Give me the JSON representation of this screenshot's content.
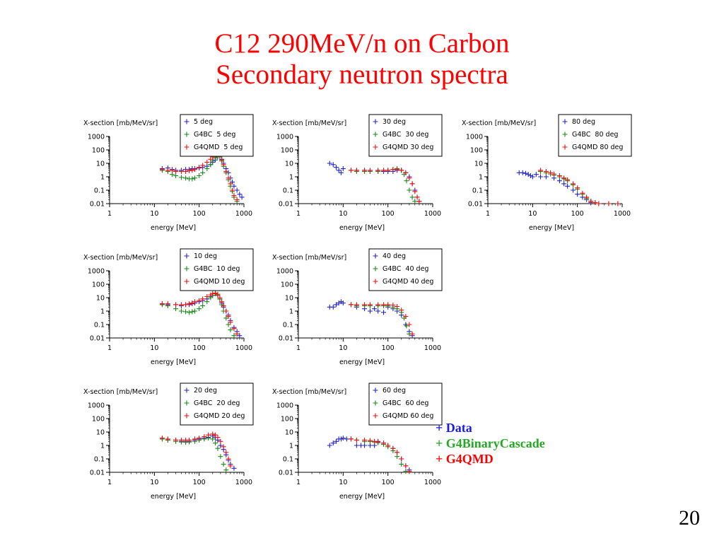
{
  "title_line1": "C12 290MeV/n on Carbon",
  "title_line2": "Secondary neutron spectra",
  "page_number": "20",
  "colors": {
    "data": "#2222cc",
    "g4bc": "#1a8a1a",
    "g4qmd": "#ee1111",
    "title": "#ff0000"
  },
  "big_legend": [
    {
      "marker": "+",
      "label": "Data",
      "color": "#1a1aee"
    },
    {
      "marker": "+",
      "label": "G4BinaryCascade",
      "color": "#22aa22"
    },
    {
      "marker": "+",
      "label": "G4QMD",
      "color": "#ff0000"
    }
  ],
  "chart_data": [
    {
      "type": "scatter",
      "angle": "5 deg",
      "ylabel": "X-section [mb/MeV/sr]",
      "xlabel": "energy [MeV]",
      "xscale": "log",
      "yscale": "log",
      "xlim": [
        1,
        1000
      ],
      "ylim": [
        0.01,
        1000
      ],
      "xticks": [
        "1",
        "10",
        "100",
        "1000"
      ],
      "yticks": [
        "1000",
        "100",
        "10",
        "1",
        "0.1",
        "0.01"
      ],
      "legend": [
        "5 deg",
        "G4BC  5 deg",
        "G4QMD  5 deg"
      ],
      "series": [
        {
          "name": "5 deg",
          "x": [
            15,
            20,
            25,
            30,
            40,
            50,
            60,
            70,
            80,
            100,
            120,
            150,
            180,
            200,
            230,
            260,
            290,
            320,
            350,
            400,
            450,
            500,
            550,
            600,
            700,
            800,
            900
          ],
          "y": [
            4,
            4.5,
            3.5,
            3,
            3,
            3.5,
            3.5,
            4,
            4,
            4.5,
            5,
            6,
            8,
            12,
            18,
            30,
            40,
            20,
            10,
            4,
            2,
            0.8,
            0.4,
            0.2,
            0.1,
            0.05,
            0.03
          ]
        },
        {
          "name": "G4BC  5 deg",
          "x": [
            15,
            20,
            25,
            30,
            40,
            50,
            60,
            70,
            80,
            100,
            120,
            150,
            180,
            200,
            230,
            260,
            290,
            320,
            350,
            400,
            450,
            500,
            550,
            600,
            700
          ],
          "y": [
            3,
            2.5,
            1.5,
            1.2,
            0.9,
            0.8,
            0.7,
            0.7,
            0.8,
            1.2,
            2,
            4,
            8,
            15,
            25,
            35,
            30,
            15,
            6,
            2,
            0.6,
            0.2,
            0.08,
            0.03,
            0.015
          ]
        },
        {
          "name": "G4QMD  5 deg",
          "x": [
            15,
            20,
            25,
            30,
            40,
            50,
            60,
            70,
            80,
            100,
            120,
            150,
            180,
            200,
            230,
            260,
            290,
            320,
            350,
            400,
            450,
            500,
            550,
            600,
            700
          ],
          "y": [
            3.5,
            3,
            3,
            2.5,
            2.5,
            2.5,
            2.8,
            3,
            3.5,
            5,
            7,
            12,
            20,
            30,
            40,
            45,
            35,
            18,
            8,
            2.5,
            0.8,
            0.3,
            0.1,
            0.04,
            0.02
          ]
        }
      ]
    },
    {
      "type": "scatter",
      "angle": "30 deg",
      "ylabel": "X-section [mb/MeV/sr]",
      "xlabel": "energy [MeV]",
      "xscale": "log",
      "yscale": "log",
      "xlim": [
        1,
        1000
      ],
      "ylim": [
        0.01,
        1000
      ],
      "xticks": [
        "1",
        "10",
        "100",
        "1000"
      ],
      "yticks": [
        "1000",
        "100",
        "10",
        "1",
        "0.1",
        "0.01"
      ],
      "legend": [
        "30 deg",
        "G4BC  30 deg",
        "G4QMD 30 deg"
      ],
      "series": [
        {
          "name": "30 deg",
          "x": [
            5,
            6,
            7,
            8,
            9,
            10,
            15,
            20,
            30,
            40,
            60,
            80,
            100,
            130,
            160,
            200,
            250,
            300,
            350,
            400,
            450,
            500
          ],
          "y": [
            10,
            8,
            5,
            3,
            2,
            4,
            3,
            3,
            3,
            2.5,
            2.5,
            2.5,
            2.5,
            2.5,
            3,
            3,
            2,
            1,
            0.3,
            0.1,
            0.03,
            0.015
          ]
        },
        {
          "name": "G4BC  30 deg",
          "x": [
            15,
            20,
            30,
            40,
            60,
            80,
            100,
            130,
            160,
            200,
            230,
            260,
            300,
            350,
            400
          ],
          "y": [
            3,
            2.5,
            2.5,
            2.5,
            2.5,
            3,
            3,
            3.5,
            4,
            3,
            1.5,
            0.5,
            0.1,
            0.03,
            0.015
          ]
        },
        {
          "name": "G4QMD 30 deg",
          "x": [
            15,
            20,
            30,
            40,
            60,
            80,
            100,
            130,
            160,
            200,
            250,
            300,
            350,
            400,
            450,
            500
          ],
          "y": [
            3,
            3,
            3,
            3,
            3,
            3,
            3,
            3.5,
            3.5,
            3,
            2,
            0.8,
            0.3,
            0.08,
            0.03,
            0.015
          ]
        }
      ]
    },
    {
      "type": "scatter",
      "angle": "80 deg",
      "ylabel": "X-section [mb/MeV/sr]",
      "xlabel": "energy [MeV]",
      "xscale": "log",
      "yscale": "log",
      "xlim": [
        1,
        1000
      ],
      "ylim": [
        0.01,
        1000
      ],
      "xticks": [
        "1",
        "10",
        "100",
        "1000"
      ],
      "yticks": [
        "1000",
        "100",
        "10",
        "1",
        "0.1",
        "0.01"
      ],
      "legend": [
        "80 deg",
        "G4BC  80 deg",
        "G4QMD 80 deg"
      ],
      "series": [
        {
          "name": "80 deg",
          "x": [
            5,
            6,
            7,
            8,
            9,
            10,
            12,
            15,
            20,
            30,
            40,
            50,
            60,
            80,
            100,
            130,
            160,
            200
          ],
          "y": [
            2,
            2,
            1.8,
            1.5,
            1.2,
            1,
            1.5,
            1,
            1,
            0.8,
            0.5,
            0.3,
            0.2,
            0.1,
            0.05,
            0.03,
            0.02,
            0.012
          ]
        },
        {
          "name": "G4BC  80 deg",
          "x": [
            15,
            20,
            25,
            30,
            40,
            50,
            60,
            80,
            100,
            130,
            160,
            200,
            250,
            300,
            500,
            800
          ],
          "y": [
            2.5,
            2,
            1.6,
            1.3,
            1,
            0.7,
            0.5,
            0.25,
            0.12,
            0.05,
            0.025,
            0.015,
            0.012,
            0.01,
            0.01,
            0.01
          ]
        },
        {
          "name": "G4QMD 80 deg",
          "x": [
            15,
            20,
            25,
            30,
            40,
            50,
            60,
            80,
            100,
            130,
            160,
            200,
            250,
            300,
            500,
            800
          ],
          "y": [
            3,
            2.5,
            2,
            1.6,
            1.2,
            0.8,
            0.6,
            0.3,
            0.15,
            0.06,
            0.03,
            0.015,
            0.012,
            0.01,
            0.01,
            0.01
          ]
        }
      ]
    },
    {
      "type": "scatter",
      "angle": "10 deg",
      "ylabel": "X-section [mb/MeV/sr]",
      "xlabel": "energy [MeV]",
      "xscale": "log",
      "yscale": "log",
      "xlim": [
        1,
        1000
      ],
      "ylim": [
        0.01,
        1000
      ],
      "xticks": [
        "1",
        "10",
        "100",
        "1000"
      ],
      "yticks": [
        "1000",
        "100",
        "10",
        "1",
        "0.1",
        "0.01"
      ],
      "legend": [
        "10 deg",
        "G4BC  10 deg",
        "G4QMD 10 deg"
      ],
      "series": [
        {
          "name": "10 deg",
          "x": [
            15,
            20,
            30,
            40,
            50,
            60,
            70,
            80,
            100,
            120,
            150,
            180,
            200,
            230,
            260,
            290,
            320,
            350,
            400,
            450,
            500,
            600,
            700,
            800
          ],
          "y": [
            3.5,
            3,
            3,
            2.5,
            3,
            3,
            3.5,
            4,
            5,
            6,
            8,
            12,
            15,
            20,
            15,
            8,
            4,
            2,
            1,
            0.5,
            0.2,
            0.06,
            0.03,
            0.015
          ]
        },
        {
          "name": "G4BC  10 deg",
          "x": [
            15,
            20,
            30,
            40,
            50,
            60,
            70,
            80,
            100,
            120,
            150,
            180,
            200,
            230,
            260,
            290,
            320,
            350,
            400,
            450,
            500,
            600
          ],
          "y": [
            3,
            2.5,
            1.5,
            1,
            0.9,
            0.8,
            0.9,
            1,
            1.5,
            2.5,
            5,
            10,
            15,
            20,
            15,
            8,
            3,
            1,
            0.3,
            0.1,
            0.04,
            0.015
          ]
        },
        {
          "name": "G4QMD 10 deg",
          "x": [
            15,
            20,
            30,
            40,
            50,
            60,
            70,
            80,
            100,
            120,
            150,
            180,
            200,
            230,
            260,
            290,
            320,
            350,
            400,
            450,
            500,
            600,
            700
          ],
          "y": [
            3.5,
            3.5,
            3,
            3,
            3,
            3.5,
            4,
            5,
            6,
            8,
            12,
            16,
            20,
            22,
            18,
            10,
            5,
            2.5,
            1,
            0.4,
            0.15,
            0.05,
            0.02
          ]
        }
      ]
    },
    {
      "type": "scatter",
      "angle": "40 deg",
      "ylabel": "X-section [mb/MeV/sr]",
      "xlabel": "energy [MeV]",
      "xscale": "log",
      "yscale": "log",
      "xlim": [
        1,
        1000
      ],
      "ylim": [
        0.01,
        1000
      ],
      "xticks": [
        "1",
        "10",
        "100",
        "1000"
      ],
      "yticks": [
        "1000",
        "100",
        "10",
        "1",
        "0.1",
        "0.01"
      ],
      "legend": [
        "40 deg",
        "G4BC  40 deg",
        "G4QMD 40 deg"
      ],
      "series": [
        {
          "name": "40 deg",
          "x": [
            5,
            6,
            7,
            8,
            9,
            10,
            15,
            20,
            30,
            40,
            50,
            60,
            80,
            100,
            130,
            160,
            200,
            250,
            300,
            350
          ],
          "y": [
            2,
            2,
            3,
            4,
            5,
            4,
            3,
            2,
            1.5,
            1,
            1.5,
            1,
            0.8,
            2,
            1.5,
            1,
            0.5,
            0.1,
            0.03,
            0.015
          ]
        },
        {
          "name": "G4BC  40 deg",
          "x": [
            15,
            20,
            30,
            40,
            60,
            80,
            100,
            130,
            160,
            200,
            230,
            260,
            300
          ],
          "y": [
            3,
            2.5,
            2.5,
            2.5,
            2.5,
            2.5,
            2.5,
            2,
            1.5,
            0.8,
            0.3,
            0.08,
            0.02
          ]
        },
        {
          "name": "G4QMD 40 deg",
          "x": [
            15,
            20,
            30,
            40,
            60,
            80,
            100,
            130,
            160,
            200,
            250,
            300,
            350
          ],
          "y": [
            3,
            3,
            3,
            3,
            3,
            3,
            3,
            2.8,
            2.2,
            1.2,
            0.4,
            0.1,
            0.02
          ]
        }
      ]
    },
    {
      "type": "scatter",
      "angle": "20 deg",
      "ylabel": "X-section [mb/MeV/sr]",
      "xlabel": "energy [MeV]",
      "xscale": "log",
      "yscale": "log",
      "xlim": [
        1,
        1000
      ],
      "ylim": [
        0.01,
        1000
      ],
      "xticks": [
        "1",
        "10",
        "100",
        "1000"
      ],
      "yticks": [
        "1000",
        "100",
        "10",
        "1",
        "0.1",
        "0.01"
      ],
      "legend": [
        "20 deg",
        "G4BC  20 deg",
        "G4QMD 20 deg"
      ],
      "series": [
        {
          "name": "20 deg",
          "x": [
            15,
            20,
            30,
            40,
            50,
            60,
            80,
            100,
            130,
            160,
            200,
            230,
            260,
            300,
            350,
            400,
            450,
            500,
            600
          ],
          "y": [
            3,
            2.5,
            2.5,
            2,
            2,
            2,
            2.5,
            3,
            3.5,
            4,
            5,
            4,
            2.5,
            1,
            0.5,
            0.2,
            0.08,
            0.04,
            0.02
          ]
        },
        {
          "name": "G4BC  20 deg",
          "x": [
            15,
            20,
            30,
            40,
            50,
            60,
            80,
            100,
            130,
            160,
            200,
            230,
            260,
            300,
            350,
            400
          ],
          "y": [
            3,
            2.5,
            2,
            1.8,
            1.7,
            1.8,
            2,
            2.5,
            3,
            3.5,
            3,
            1.5,
            0.6,
            0.15,
            0.04,
            0.015
          ]
        },
        {
          "name": "G4QMD 20 deg",
          "x": [
            15,
            20,
            30,
            40,
            50,
            60,
            80,
            100,
            130,
            160,
            200,
            230,
            260,
            300,
            350,
            400,
            450,
            500
          ],
          "y": [
            3.5,
            3,
            2.5,
            2.5,
            2.5,
            2.5,
            3,
            3.5,
            4.5,
            6,
            7,
            6,
            4,
            2,
            0.8,
            0.3,
            0.1,
            0.03
          ]
        }
      ]
    },
    {
      "type": "scatter",
      "angle": "60 deg",
      "ylabel": "X-section [mb/MeV/sr]",
      "xlabel": "energy [MeV]",
      "xscale": "log",
      "yscale": "log",
      "xlim": [
        1,
        1000
      ],
      "ylim": [
        0.01,
        1000
      ],
      "xticks": [
        "1",
        "10",
        "100",
        "1000"
      ],
      "yticks": [
        "1000",
        "100",
        "10",
        "1",
        "0.1",
        "0.01"
      ],
      "legend": [
        "60 deg",
        "G4BC  60 deg",
        "G4QMD 60 deg"
      ],
      "series": [
        {
          "name": "60 deg",
          "x": [
            5,
            6,
            7,
            8,
            9,
            10,
            12,
            15,
            20,
            25,
            30,
            40,
            50,
            60,
            80,
            100,
            130,
            160,
            200,
            250,
            300
          ],
          "y": [
            1,
            1.5,
            2,
            3,
            3,
            3.5,
            3,
            3,
            1,
            1,
            1,
            1,
            1,
            2,
            1.5,
            1,
            0.6,
            0.3,
            0.1,
            0.03,
            0.015
          ]
        },
        {
          "name": "G4BC  60 deg",
          "x": [
            15,
            20,
            30,
            40,
            50,
            60,
            80,
            100,
            130,
            160,
            200,
            250
          ],
          "y": [
            3,
            2.5,
            2,
            2,
            1.8,
            1.6,
            1.2,
            0.8,
            0.4,
            0.15,
            0.04,
            0.012
          ]
        },
        {
          "name": "G4QMD 60 deg",
          "x": [
            15,
            20,
            30,
            40,
            50,
            60,
            80,
            100,
            130,
            160,
            200,
            250,
            300
          ],
          "y": [
            3,
            2.5,
            2.5,
            2.3,
            2,
            1.8,
            1.5,
            1,
            0.6,
            0.3,
            0.1,
            0.03,
            0.012
          ]
        }
      ]
    }
  ]
}
